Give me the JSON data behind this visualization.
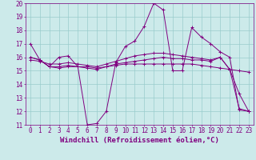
{
  "title": "",
  "xlabel": "Windchill (Refroidissement éolien,°C)",
  "ylabel": "",
  "background_color": "#cceaea",
  "line_color": "#800080",
  "grid_color": "#99cccc",
  "xlim": [
    -0.5,
    23.5
  ],
  "ylim": [
    11,
    20
  ],
  "xticks": [
    0,
    1,
    2,
    3,
    4,
    5,
    6,
    7,
    8,
    9,
    10,
    11,
    12,
    13,
    14,
    15,
    16,
    17,
    18,
    19,
    20,
    21,
    22,
    23
  ],
  "yticks": [
    11,
    12,
    13,
    14,
    15,
    16,
    17,
    18,
    19,
    20
  ],
  "series": [
    {
      "x": [
        0,
        1,
        2,
        3,
        4,
        5,
        6,
        7,
        8,
        9,
        10,
        11,
        12,
        13,
        14,
        15,
        16,
        17,
        18,
        19,
        20,
        21,
        22,
        23
      ],
      "y": [
        17.0,
        15.8,
        15.3,
        16.0,
        16.1,
        15.3,
        11.0,
        11.1,
        12.0,
        15.6,
        16.8,
        17.2,
        18.3,
        20.0,
        19.5,
        15.0,
        15.0,
        18.2,
        17.5,
        17.0,
        16.4,
        16.0,
        12.1,
        12.0
      ]
    },
    {
      "x": [
        0,
        1,
        2,
        3,
        4,
        5,
        6,
        7,
        8,
        9,
        10,
        11,
        12,
        13,
        14,
        15,
        16,
        17,
        18,
        19,
        20,
        21,
        22,
        23
      ],
      "y": [
        16.0,
        15.8,
        15.3,
        15.3,
        15.4,
        15.3,
        15.3,
        15.2,
        15.3,
        15.4,
        15.5,
        15.5,
        15.5,
        15.5,
        15.5,
        15.5,
        15.5,
        15.5,
        15.4,
        15.3,
        15.2,
        15.1,
        15.0,
        14.9
      ]
    },
    {
      "x": [
        0,
        1,
        2,
        3,
        4,
        5,
        6,
        7,
        8,
        9,
        10,
        11,
        12,
        13,
        14,
        15,
        16,
        17,
        18,
        19,
        20,
        21,
        22,
        23
      ],
      "y": [
        15.8,
        15.7,
        15.5,
        15.5,
        15.6,
        15.5,
        15.4,
        15.3,
        15.5,
        15.7,
        15.9,
        16.1,
        16.2,
        16.3,
        16.3,
        16.2,
        16.1,
        16.0,
        15.9,
        15.8,
        16.0,
        15.1,
        12.2,
        12.0
      ]
    },
    {
      "x": [
        0,
        1,
        2,
        3,
        4,
        5,
        6,
        7,
        8,
        9,
        10,
        11,
        12,
        13,
        14,
        15,
        16,
        17,
        18,
        19,
        20,
        21,
        22,
        23
      ],
      "y": [
        16.0,
        15.8,
        15.3,
        15.2,
        15.3,
        15.3,
        15.2,
        15.1,
        15.3,
        15.5,
        15.6,
        15.7,
        15.8,
        15.9,
        16.0,
        15.9,
        15.9,
        15.8,
        15.8,
        15.7,
        16.0,
        15.1,
        13.3,
        12.0
      ]
    }
  ],
  "font_color": "#800080",
  "tick_label_size": 5.5,
  "xlabel_size": 6.5
}
